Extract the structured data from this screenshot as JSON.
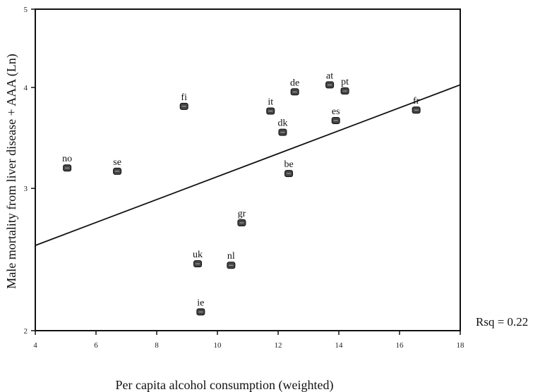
{
  "chart_data": {
    "type": "scatter",
    "xlabel": "Per capita alcohol consumption (weighted)",
    "ylabel": "Male mortality from liver disease + AAA (Ln)",
    "xlim": [
      4,
      18
    ],
    "ylim": [
      2,
      5
    ],
    "yscale": "log",
    "x_ticks": [
      4,
      6,
      8,
      10,
      12,
      14,
      16,
      18
    ],
    "x_tick_labels": [
      "4",
      "6",
      "8",
      "10",
      "12",
      "14",
      "16",
      "18"
    ],
    "y_ticks": [
      2,
      3,
      4,
      5
    ],
    "y_tick_labels": [
      "2",
      "3",
      "4",
      "5"
    ],
    "grid": false,
    "legend": "none",
    "points": [
      {
        "label": "no",
        "x": 5.05,
        "y": 3.18
      },
      {
        "label": "se",
        "x": 6.7,
        "y": 3.15
      },
      {
        "label": "fi",
        "x": 8.9,
        "y": 3.79
      },
      {
        "label": "it",
        "x": 11.75,
        "y": 3.74
      },
      {
        "label": "de",
        "x": 12.55,
        "y": 3.95
      },
      {
        "label": "dk",
        "x": 12.15,
        "y": 3.52
      },
      {
        "label": "be",
        "x": 12.35,
        "y": 3.13
      },
      {
        "label": "at",
        "x": 13.7,
        "y": 4.03
      },
      {
        "label": "pt",
        "x": 14.2,
        "y": 3.96
      },
      {
        "label": "es",
        "x": 13.9,
        "y": 3.64
      },
      {
        "label": "fr",
        "x": 16.55,
        "y": 3.75
      },
      {
        "label": "gr",
        "x": 10.8,
        "y": 2.72
      },
      {
        "label": "uk",
        "x": 9.35,
        "y": 2.42
      },
      {
        "label": "nl",
        "x": 10.45,
        "y": 2.41
      },
      {
        "label": "ie",
        "x": 9.45,
        "y": 2.11
      }
    ],
    "fit_line": {
      "type": "linear",
      "x": [
        4,
        18
      ],
      "y": [
        2.55,
        4.03
      ]
    },
    "annotation": "Rsq = 0.22",
    "colors": {
      "axis": "#111111",
      "line": "#111111",
      "marker": "#444444"
    }
  }
}
